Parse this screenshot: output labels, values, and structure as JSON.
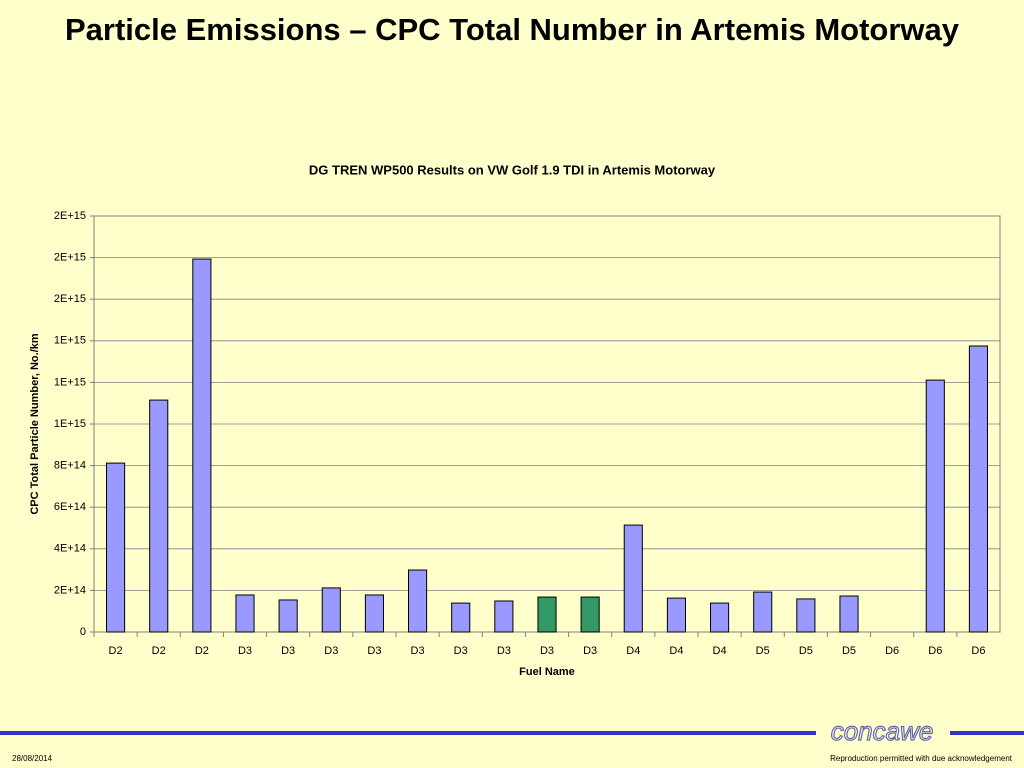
{
  "slide": {
    "title": "Particle Emissions – CPC Total Number in Artemis Motorway",
    "logo": "concawe",
    "date": "28/08/2014",
    "footer": "Reproduction permitted with due acknowledgement"
  },
  "chart_data": {
    "type": "bar",
    "title": "DG TREN WP500 Results on VW Golf 1.9 TDI in Artemis Motorway",
    "x_label": "Fuel Name",
    "y_label": "CPC Total Particle Number, No./km",
    "categories": [
      "D2",
      "D2",
      "D2",
      "D3",
      "D3",
      "D3",
      "D3",
      "D3",
      "D3",
      "D3",
      "D3",
      "D3",
      "D4",
      "D4",
      "D4",
      "D5",
      "D5",
      "D5",
      "D6",
      "D6",
      "D6"
    ],
    "values": [
      812000000000000,
      1115000000000000,
      1793000000000000,
      178000000000000,
      154000000000000,
      212000000000000,
      178000000000000,
      298000000000000,
      139000000000000,
      149000000000000,
      168000000000000,
      168000000000000,
      514000000000000,
      163000000000000,
      139000000000000,
      192000000000000,
      159000000000000,
      173000000000000,
      null,
      1211000000000000,
      1375000000000000
    ],
    "colors": [
      "#9999ff",
      "#9999ff",
      "#9999ff",
      "#9999ff",
      "#9999ff",
      "#9999ff",
      "#9999ff",
      "#9999ff",
      "#9999ff",
      "#9999ff",
      "#339966",
      "#339966",
      "#9999ff",
      "#9999ff",
      "#9999ff",
      "#9999ff",
      "#9999ff",
      "#9999ff",
      "#9999ff",
      "#9999ff",
      "#9999ff"
    ],
    "ylim": [
      0,
      2000000000000000
    ],
    "yticks": [
      0,
      {
        "value": 200000000000000,
        "label": "2E+14"
      },
      {
        "value": 400000000000000,
        "label": "4E+14"
      },
      {
        "value": 600000000000000,
        "label": "6E+14"
      },
      {
        "value": 800000000000000,
        "label": "8E+14"
      },
      {
        "value": 1000000000000000,
        "label": "1E+15"
      },
      {
        "value": 1200000000000000,
        "label": "1E+15"
      },
      {
        "value": 1400000000000000,
        "label": "1E+15"
      },
      {
        "value": 1600000000000000,
        "label": "2E+15"
      },
      {
        "value": 1800000000000000,
        "label": "2E+15"
      },
      {
        "value": 2000000000000000,
        "label": "2E+15"
      }
    ],
    "grid": true
  }
}
